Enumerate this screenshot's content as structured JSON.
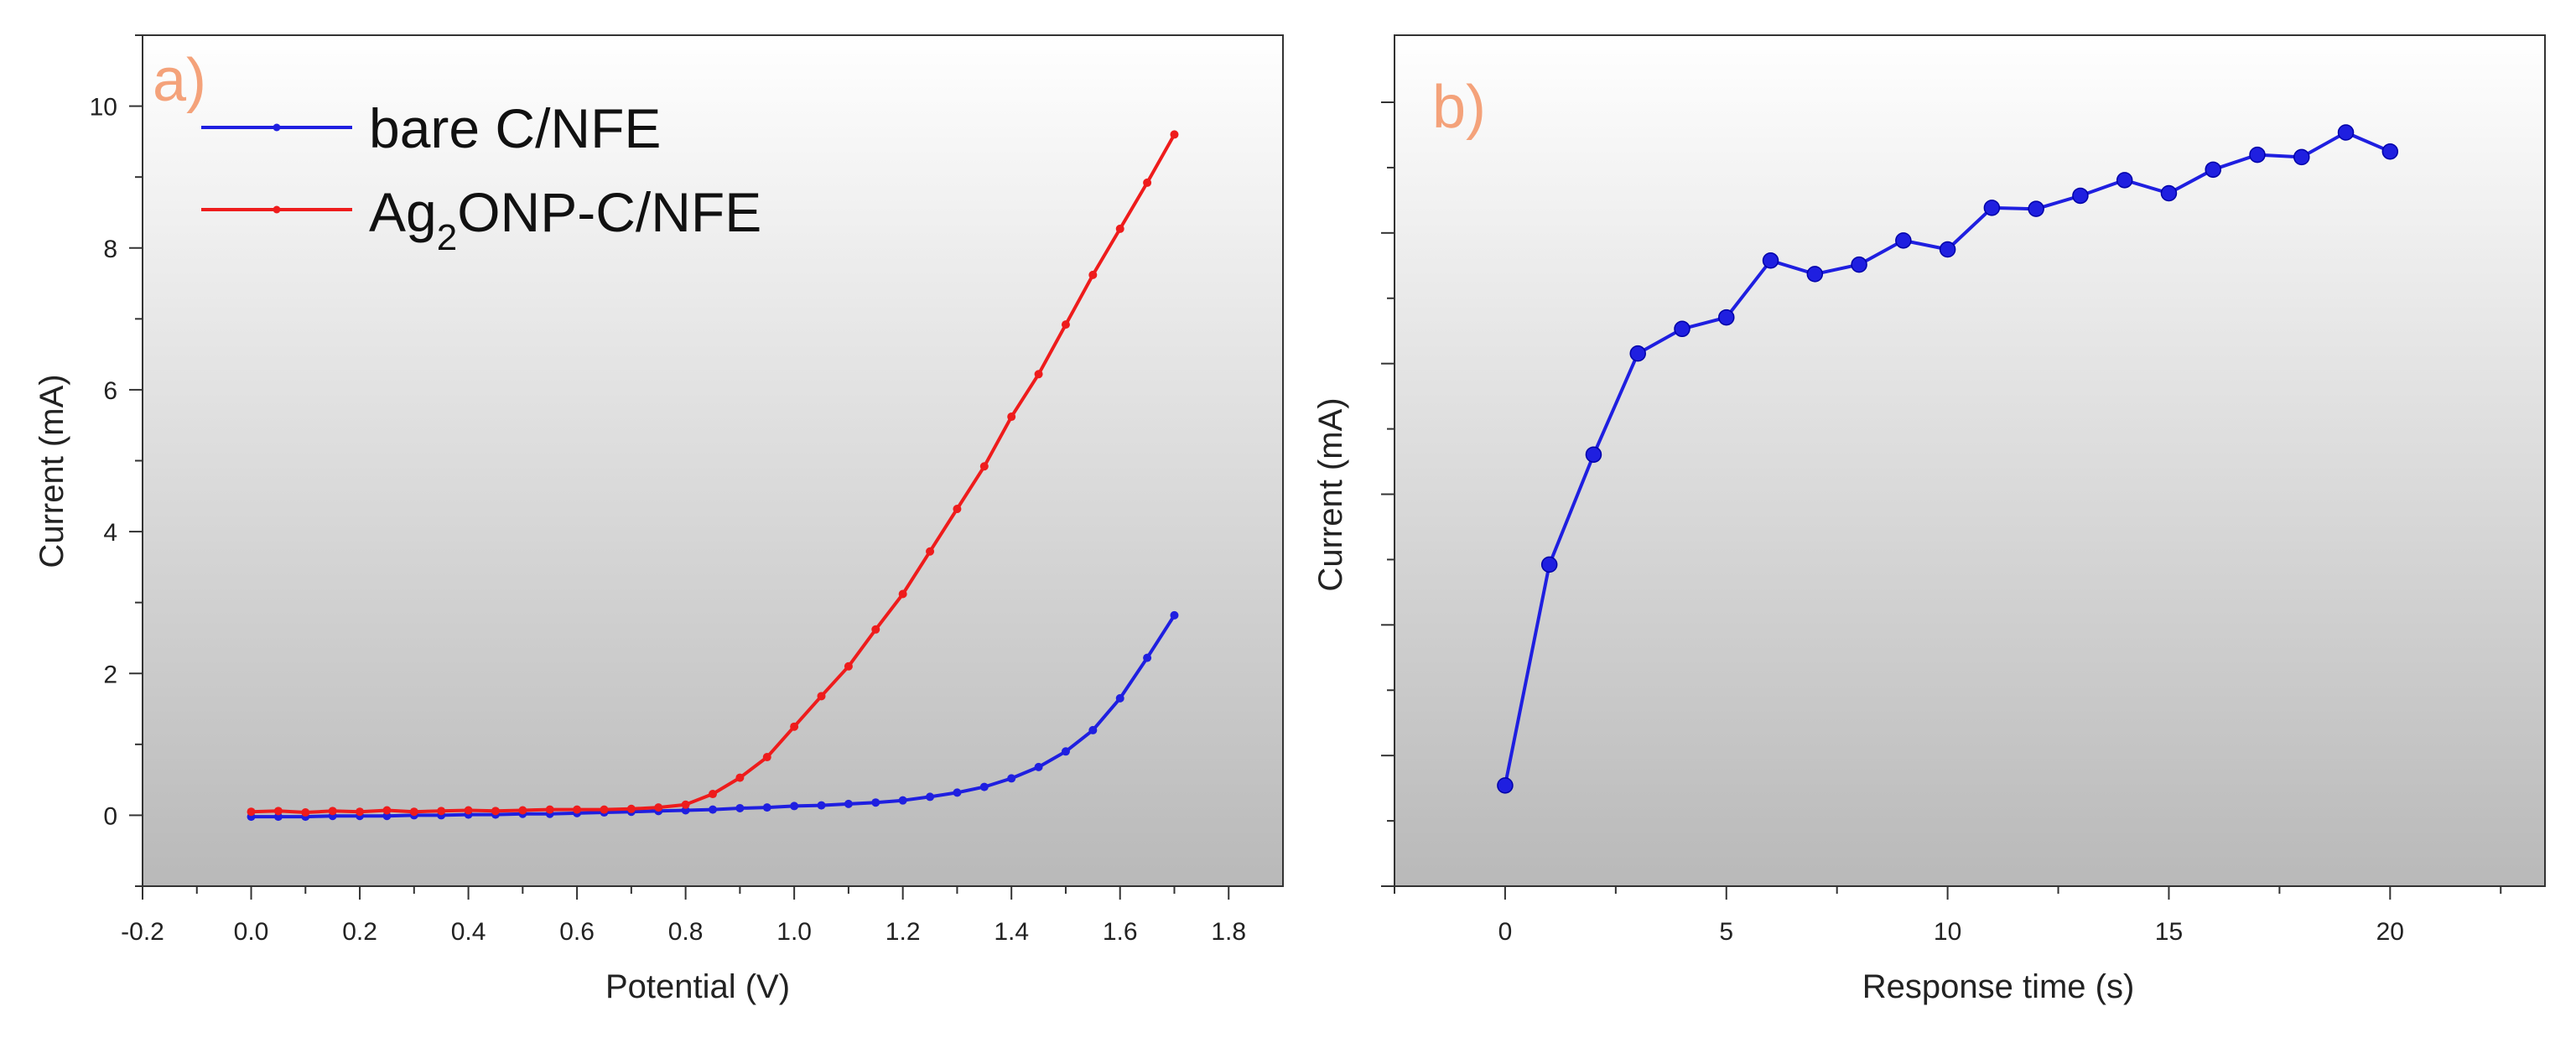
{
  "chart_data": [
    {
      "type": "line",
      "panel_label": "a)",
      "xlabel": "Potential (V)",
      "ylabel": "Current (mA)",
      "xlim": [
        -0.2,
        1.9
      ],
      "ylim": [
        -1,
        11
      ],
      "xticks": [
        "-0.2",
        "0.0",
        "0.2",
        "0.4",
        "0.6",
        "0.8",
        "1.0",
        "1.2",
        "1.4",
        "1.6",
        "1.8"
      ],
      "yticks": [
        "0",
        "2",
        "4",
        "6",
        "8",
        "10"
      ],
      "legend_position": "top-left",
      "series": [
        {
          "name": "bare C/NFE",
          "legend_main": "bare C/NFE",
          "legend_sub": "",
          "legend_tail": "",
          "color": "#1f1fe0",
          "x": [
            0.0,
            0.05,
            0.1,
            0.15,
            0.2,
            0.25,
            0.3,
            0.35,
            0.4,
            0.45,
            0.5,
            0.55,
            0.6,
            0.65,
            0.7,
            0.75,
            0.8,
            0.85,
            0.9,
            0.95,
            1.0,
            1.05,
            1.1,
            1.15,
            1.2,
            1.25,
            1.3,
            1.35,
            1.4,
            1.45,
            1.5,
            1.55,
            1.6,
            1.65,
            1.7
          ],
          "y": [
            -0.02,
            -0.02,
            -0.02,
            -0.01,
            -0.01,
            -0.01,
            0.0,
            0.0,
            0.01,
            0.01,
            0.02,
            0.02,
            0.03,
            0.04,
            0.05,
            0.06,
            0.07,
            0.08,
            0.1,
            0.11,
            0.13,
            0.14,
            0.16,
            0.18,
            0.21,
            0.26,
            0.32,
            0.4,
            0.52,
            0.68,
            0.9,
            1.2,
            1.65,
            2.22,
            2.82
          ]
        },
        {
          "name": "Ag2ONP-C/NFE",
          "legend_main": "Ag",
          "legend_sub": "2",
          "legend_tail": "ONP-C/NFE",
          "color": "#ee1c1c",
          "x": [
            0.0,
            0.05,
            0.1,
            0.15,
            0.2,
            0.25,
            0.3,
            0.35,
            0.4,
            0.45,
            0.5,
            0.55,
            0.6,
            0.65,
            0.7,
            0.75,
            0.8,
            0.85,
            0.9,
            0.95,
            1.0,
            1.05,
            1.1,
            1.15,
            1.2,
            1.25,
            1.3,
            1.35,
            1.4,
            1.45,
            1.5,
            1.55,
            1.6,
            1.65,
            1.7
          ],
          "y": [
            0.05,
            0.06,
            0.04,
            0.06,
            0.05,
            0.07,
            0.05,
            0.06,
            0.07,
            0.06,
            0.07,
            0.08,
            0.08,
            0.08,
            0.09,
            0.11,
            0.15,
            0.3,
            0.53,
            0.82,
            1.25,
            1.68,
            2.1,
            2.62,
            3.12,
            3.72,
            4.32,
            4.92,
            5.62,
            6.22,
            6.92,
            7.62,
            8.27,
            8.92,
            9.6
          ]
        }
      ]
    },
    {
      "type": "line",
      "panel_label": "b)",
      "xlabel": "Response time (s)",
      "ylabel": "Current (mA)",
      "xlim": [
        -2.5,
        23.5
      ],
      "ylim": [
        0,
        1
      ],
      "y_tick_count": 13,
      "xticks": [
        "0",
        "5",
        "10",
        "15",
        "20"
      ],
      "series": [
        {
          "name": "response",
          "color": "#1f1fe0",
          "x": [
            0,
            1,
            2,
            3,
            4,
            5,
            6,
            7,
            8,
            9,
            10,
            11,
            12,
            13,
            14,
            15,
            16,
            17,
            18,
            19,
            20
          ],
          "y": [
            0.1285,
            0.4103,
            0.5506,
            0.6795,
            0.7109,
            0.7256,
            0.7981,
            0.7809,
            0.7929,
            0.8237,
            0.8123,
            0.8654,
            0.864,
            0.8808,
            0.9007,
            0.884,
            0.9141,
            0.933,
            0.9301,
            0.9615,
            0.9372
          ]
        }
      ]
    }
  ]
}
